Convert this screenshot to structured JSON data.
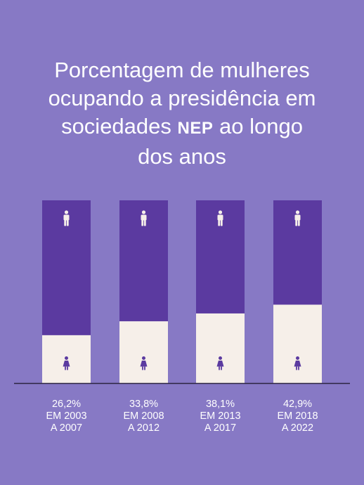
{
  "title": {
    "line1": "Porcentagem de mulheres",
    "line2": "ocupando a presidência em",
    "line3_pre": "sociedades ",
    "line3_nep": "NEP",
    "line3_post": " ao longo",
    "line4": "dos anos"
  },
  "colors": {
    "background": "#8779c5",
    "men_bar": "#5b3aa0",
    "women_bar": "#f6efe9",
    "icon_men": "#f6efe9",
    "icon_women": "#5b3aa0",
    "axis": "#2b2340"
  },
  "icons": {
    "men": "man-icon",
    "women": "woman-icon"
  },
  "chart_data": {
    "type": "bar",
    "stacked": true,
    "categories": [
      "EM 2003 A 2007",
      "EM 2008 A 2012",
      "EM 2013 A 2017",
      "EM 2018 A 2022"
    ],
    "series": [
      {
        "values": [
          26.2,
          33.8,
          38.1,
          42.9
        ]
      },
      {
        "values": [
          73.8,
          66.2,
          61.9,
          57.1
        ]
      }
    ],
    "ylim": [
      0,
      100
    ],
    "grid": false,
    "data_labels": [
      {
        "value": "26,2%",
        "period_line1": "EM 2003",
        "period_line2": "A 2007"
      },
      {
        "value": "33,8%",
        "period_line1": "EM 2008",
        "period_line2": "A 2012"
      },
      {
        "value": "38,1%",
        "period_line1": "EM 2013",
        "period_line2": "A 2017"
      },
      {
        "value": "42,9%",
        "period_line1": "EM 2018",
        "period_line2": "A 2022"
      }
    ]
  }
}
